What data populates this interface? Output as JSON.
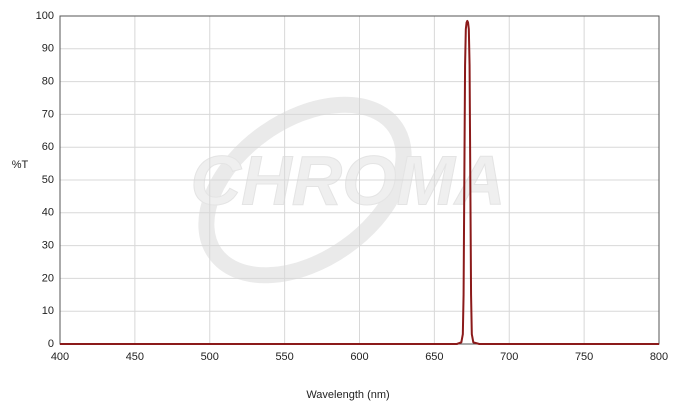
{
  "chart_data": {
    "type": "line",
    "watermark": "CHROMA",
    "xlabel": "Wavelength (nm)",
    "ylabel": "%T",
    "x": [
      400,
      665,
      668,
      669,
      669.5,
      670,
      670.5,
      671,
      671.5,
      672,
      672.5,
      673,
      673.5,
      674,
      674.5,
      675,
      676,
      680,
      800
    ],
    "series": [
      {
        "name": "%T",
        "color": "#8b1a1a",
        "values": [
          0,
          0,
          0.5,
          3,
          15,
          50,
          85,
          96,
          98,
          98.5,
          98,
          96,
          85,
          50,
          15,
          3,
          0.5,
          0,
          0
        ]
      }
    ],
    "xlim": [
      400,
      800
    ],
    "xticks": [
      400,
      450,
      500,
      550,
      600,
      650,
      700,
      750,
      800
    ],
    "ylim": [
      0,
      100
    ],
    "yticks": [
      0,
      10,
      20,
      30,
      40,
      50,
      60,
      70,
      80,
      90,
      100
    ],
    "grid": true
  }
}
